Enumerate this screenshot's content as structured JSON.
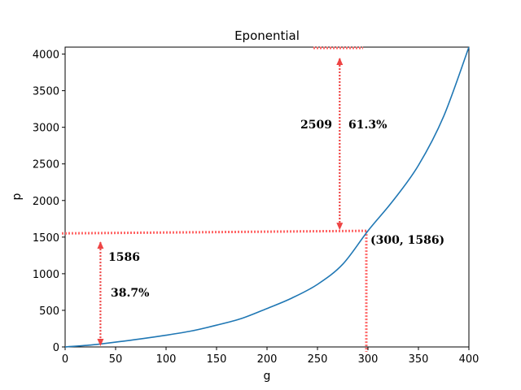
{
  "chart_data": {
    "type": "line",
    "title": "Eponential",
    "xlabel": "g",
    "ylabel": "p",
    "xlim": [
      0,
      400
    ],
    "ylim": [
      0,
      4095
    ],
    "xticks": [
      0,
      50,
      100,
      150,
      200,
      250,
      300,
      350,
      400
    ],
    "yticks": [
      0,
      500,
      1000,
      1500,
      2000,
      2500,
      3000,
      3500,
      4000
    ],
    "series": [
      {
        "name": "p",
        "color": "#1f77b4",
        "x": [
          0,
          25,
          50,
          75,
          100,
          125,
          150,
          175,
          200,
          225,
          250,
          275,
          300,
          325,
          350,
          375,
          400
        ],
        "y": [
          0,
          26,
          65,
          110,
          160,
          218,
          297,
          390,
          525,
          670,
          855,
          1130,
          1586,
          2000,
          2480,
          3150,
          4095
        ]
      }
    ],
    "highlight": {
      "x": 300,
      "y": 1586,
      "label": "(300, 1586)"
    },
    "reference_lines": {
      "color": "#ff6666",
      "horizontal_y": 1586,
      "vertical_x": 300,
      "top_y": 4095
    },
    "annotations": {
      "lower_arrow": {
        "x": 35,
        "from": 0,
        "to": 1586,
        "value_label": "1586",
        "percent_label": "38.7%"
      },
      "upper_arrow": {
        "x": 272,
        "from": 1586,
        "to": 4095,
        "value_label": "2509",
        "percent_label": "61.3%"
      }
    }
  }
}
